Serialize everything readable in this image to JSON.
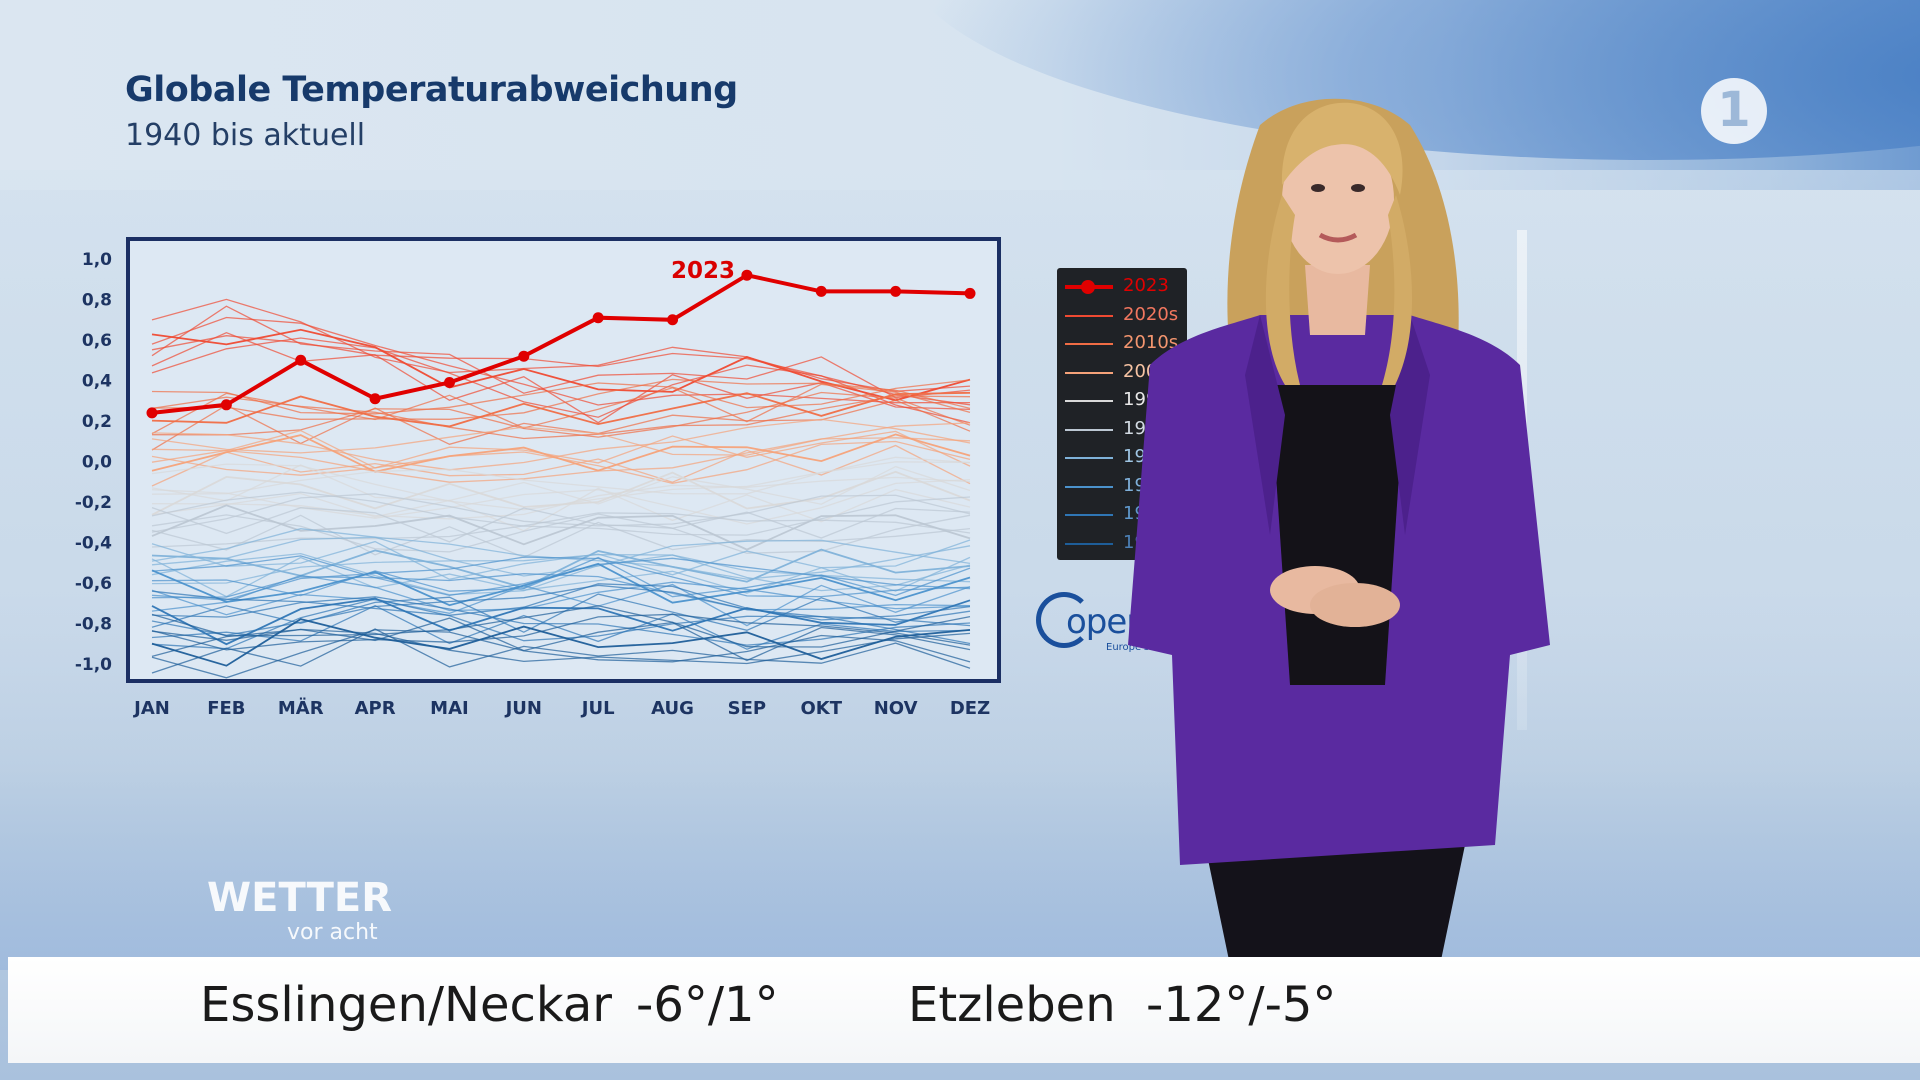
{
  "chart_data": {
    "type": "line",
    "title": "Globale Temperaturabweichung",
    "subtitle": "1940 bis aktuell",
    "categories": [
      "JAN",
      "FEB",
      "MÄR",
      "APR",
      "MAI",
      "JUN",
      "JUL",
      "AUG",
      "SEP",
      "OKT",
      "NOV",
      "DEZ"
    ],
    "ylim": [
      -1.0,
      1.0
    ],
    "yticks": [
      "1,0",
      "0,8",
      "0,6",
      "0,4",
      "0,2",
      "0,0",
      "-0,2",
      "-0,4",
      "-0,6",
      "-0,8",
      "-1,0"
    ],
    "highlight_series": {
      "name": "2023",
      "color": "#e00000",
      "values": [
        0.24,
        0.28,
        0.5,
        0.31,
        0.39,
        0.52,
        0.71,
        0.7,
        0.92,
        0.84,
        0.84,
        0.83
      ]
    },
    "series": [
      {
        "name": "2020s",
        "color": "#ef4a32",
        "values": [
          0.56,
          0.66,
          0.62,
          0.52,
          0.45,
          0.4,
          0.34,
          0.42,
          0.44,
          0.41,
          0.36,
          0.32
        ]
      },
      {
        "name": "2010s",
        "color": "#f06d45",
        "values": [
          0.2,
          0.26,
          0.24,
          0.25,
          0.22,
          0.2,
          0.24,
          0.28,
          0.26,
          0.3,
          0.32,
          0.28
        ]
      },
      {
        "name": "2000s",
        "color": "#f5a279",
        "values": [
          0.02,
          0.05,
          0.06,
          0.03,
          0.0,
          0.02,
          0.04,
          0.02,
          0.05,
          0.08,
          0.06,
          0.04
        ]
      },
      {
        "name": "1990s",
        "color": "#d9d9d9",
        "values": [
          -0.18,
          -0.14,
          -0.12,
          -0.16,
          -0.19,
          -0.2,
          -0.15,
          -0.14,
          -0.18,
          -0.16,
          -0.13,
          -0.12
        ]
      },
      {
        "name": "1980s",
        "color": "#bcc7d3",
        "values": [
          -0.33,
          -0.3,
          -0.28,
          -0.31,
          -0.34,
          -0.33,
          -0.3,
          -0.32,
          -0.35,
          -0.32,
          -0.29,
          -0.3
        ]
      },
      {
        "name": "1970s",
        "color": "#7fb2d9",
        "values": [
          -0.5,
          -0.52,
          -0.48,
          -0.5,
          -0.53,
          -0.55,
          -0.52,
          -0.5,
          -0.54,
          -0.52,
          -0.5,
          -0.49
        ]
      },
      {
        "name": "1960s",
        "color": "#4b92cc",
        "values": [
          -0.62,
          -0.66,
          -0.6,
          -0.63,
          -0.65,
          -0.6,
          -0.58,
          -0.62,
          -0.66,
          -0.63,
          -0.6,
          -0.62
        ]
      },
      {
        "name": "1950s",
        "color": "#2f76b5",
        "values": [
          -0.78,
          -0.82,
          -0.76,
          -0.72,
          -0.75,
          -0.78,
          -0.74,
          -0.76,
          -0.8,
          -0.78,
          -0.75,
          -0.77
        ]
      },
      {
        "name": "1940s",
        "color": "#1e5e99",
        "values": [
          -0.9,
          -0.94,
          -0.86,
          -0.84,
          -0.88,
          -0.9,
          -0.86,
          -0.88,
          -0.92,
          -0.9,
          -0.88,
          -0.89
        ]
      }
    ]
  },
  "legend": {
    "items": [
      {
        "label": "2023",
        "color": "#e00000",
        "text_color": "#e00000"
      },
      {
        "label": "2020s",
        "color": "#ef4a32",
        "text_color": "#f2775f"
      },
      {
        "label": "2010s",
        "color": "#f06d45",
        "text_color": "#f4966f"
      },
      {
        "label": "2000s",
        "color": "#f5a279",
        "text_color": "#f6c3a3"
      },
      {
        "label": "1990s",
        "color": "#d9d9d9",
        "text_color": "#e8e8e8"
      },
      {
        "label": "1980s",
        "color": "#bcc7d3",
        "text_color": "#d2dae2"
      },
      {
        "label": "1970s",
        "color": "#7fb2d9",
        "text_color": "#9fc6e4"
      },
      {
        "label": "1960s",
        "color": "#4b92cc",
        "text_color": "#7fb0da"
      },
      {
        "label": "1950s",
        "color": "#2f76b5",
        "text_color": "#5f98cc"
      },
      {
        "label": "1940s",
        "color": "#1e5e99",
        "text_color": "#4c80b5"
      }
    ]
  },
  "partner_logo": {
    "name": "Copernicus",
    "text": "open",
    "tagline": "Europe's eyes on"
  },
  "channel_logo": {
    "text": "1"
  },
  "show_logo": {
    "main": "WETTER",
    "sub": "vor acht"
  },
  "ticker": {
    "city1": "Esslingen/Neckar",
    "temp1": "-6°/1°",
    "city2": "Etzleben",
    "temp2": "-12°/-5°"
  }
}
